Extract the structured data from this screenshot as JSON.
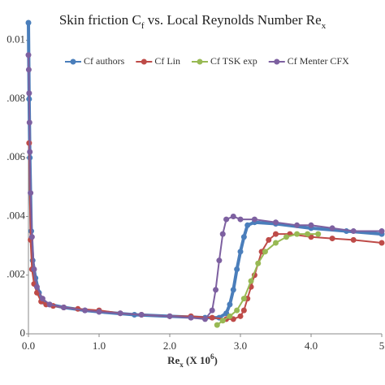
{
  "chart_data": {
    "type": "line",
    "title": [
      "Skin friction C",
      "f",
      " vs. Local Reynolds Number Re",
      "x"
    ],
    "x_label": [
      "Re",
      "x",
      " (X 10",
      "6",
      ")"
    ],
    "xlim": [
      0,
      5
    ],
    "ylim": [
      0,
      0.0106
    ],
    "xticks": [
      {
        "value": 0,
        "label": "0.0"
      },
      {
        "value": 1,
        "label": "1.0"
      },
      {
        "value": 2,
        "label": "2.0"
      },
      {
        "value": 3,
        "label": "3.0"
      },
      {
        "value": 4,
        "label": "4.0"
      },
      {
        "value": 5,
        "label": "5"
      }
    ],
    "yticks": [
      0,
      {
        "value": 0.002,
        "label": ".002"
      },
      {
        "value": 0.004,
        "label": ".004"
      },
      {
        "value": 0.006,
        "label": ".006"
      },
      {
        "value": 0.008,
        "label": ".008"
      },
      0.01
    ],
    "legend": "top-right",
    "series": [
      {
        "name": "Cf authors",
        "color": "#4a7ebb",
        "x": [
          0,
          0.01,
          0.02,
          0.04,
          0.06,
          0.1,
          0.15,
          0.2,
          0.3,
          0.5,
          0.8,
          1.0,
          1.5,
          2.0,
          2.5,
          2.7,
          2.8,
          2.85,
          2.9,
          2.95,
          3.0,
          3.05,
          3.1,
          3.2,
          3.5,
          4.0,
          4.5,
          5.0
        ],
        "values": [
          0.0106,
          0.008,
          0.006,
          0.0035,
          0.0025,
          0.0019,
          0.0014,
          0.0011,
          0.001,
          0.0009,
          0.0008,
          0.00075,
          0.00065,
          0.0006,
          0.00055,
          0.00055,
          0.0007,
          0.001,
          0.0015,
          0.0022,
          0.0028,
          0.0033,
          0.0037,
          0.0038,
          0.00375,
          0.0036,
          0.0035,
          0.0034
        ]
      },
      {
        "name": "Cf Lin",
        "color": "#be4b48",
        "x": [
          0.01,
          0.03,
          0.05,
          0.08,
          0.12,
          0.18,
          0.25,
          0.35,
          0.5,
          0.7,
          1.0,
          1.3,
          1.6,
          2.0,
          2.3,
          2.6,
          2.8,
          2.9,
          3.0,
          3.05,
          3.1,
          3.15,
          3.2,
          3.3,
          3.4,
          3.5,
          3.7,
          4.0,
          4.3,
          4.6,
          5.0
        ],
        "values": [
          0.0065,
          0.0032,
          0.0022,
          0.0017,
          0.0014,
          0.0011,
          0.001,
          0.00095,
          0.0009,
          0.00085,
          0.0008,
          0.0007,
          0.00065,
          0.0006,
          0.0006,
          0.00055,
          0.0005,
          0.0005,
          0.0006,
          0.0008,
          0.0012,
          0.0016,
          0.002,
          0.0028,
          0.0032,
          0.0034,
          0.0034,
          0.0033,
          0.00325,
          0.0032,
          0.0031
        ]
      },
      {
        "name": "Cf TSK exp",
        "color": "#98b954",
        "x": [
          2.67,
          2.75,
          2.85,
          2.95,
          3.05,
          3.15,
          3.25,
          3.35,
          3.5,
          3.65,
          3.8,
          3.95,
          4.1
        ],
        "values": [
          0.0003,
          0.00045,
          0.0006,
          0.0008,
          0.0012,
          0.0018,
          0.0024,
          0.0028,
          0.0031,
          0.0033,
          0.0034,
          0.0034,
          0.0034
        ]
      },
      {
        "name": "Cf Menter CFX",
        "color": "#7d60a0",
        "x": [
          0,
          0.005,
          0.01,
          0.015,
          0.02,
          0.03,
          0.05,
          0.08,
          0.12,
          0.2,
          0.3,
          0.5,
          0.8,
          1.0,
          1.3,
          1.6,
          2.0,
          2.3,
          2.5,
          2.6,
          2.65,
          2.7,
          2.75,
          2.8,
          2.9,
          3.0,
          3.2,
          3.5,
          3.8,
          4.0,
          4.3,
          4.6,
          5.0
        ],
        "values": [
          0.0095,
          0.009,
          0.0082,
          0.0072,
          0.0062,
          0.0048,
          0.0033,
          0.0022,
          0.0016,
          0.0012,
          0.001,
          0.0009,
          0.0008,
          0.00075,
          0.0007,
          0.00065,
          0.0006,
          0.00055,
          0.0005,
          0.0008,
          0.0015,
          0.0025,
          0.0034,
          0.0039,
          0.004,
          0.0039,
          0.0039,
          0.0038,
          0.0037,
          0.0037,
          0.0036,
          0.0035,
          0.0035
        ]
      }
    ]
  }
}
